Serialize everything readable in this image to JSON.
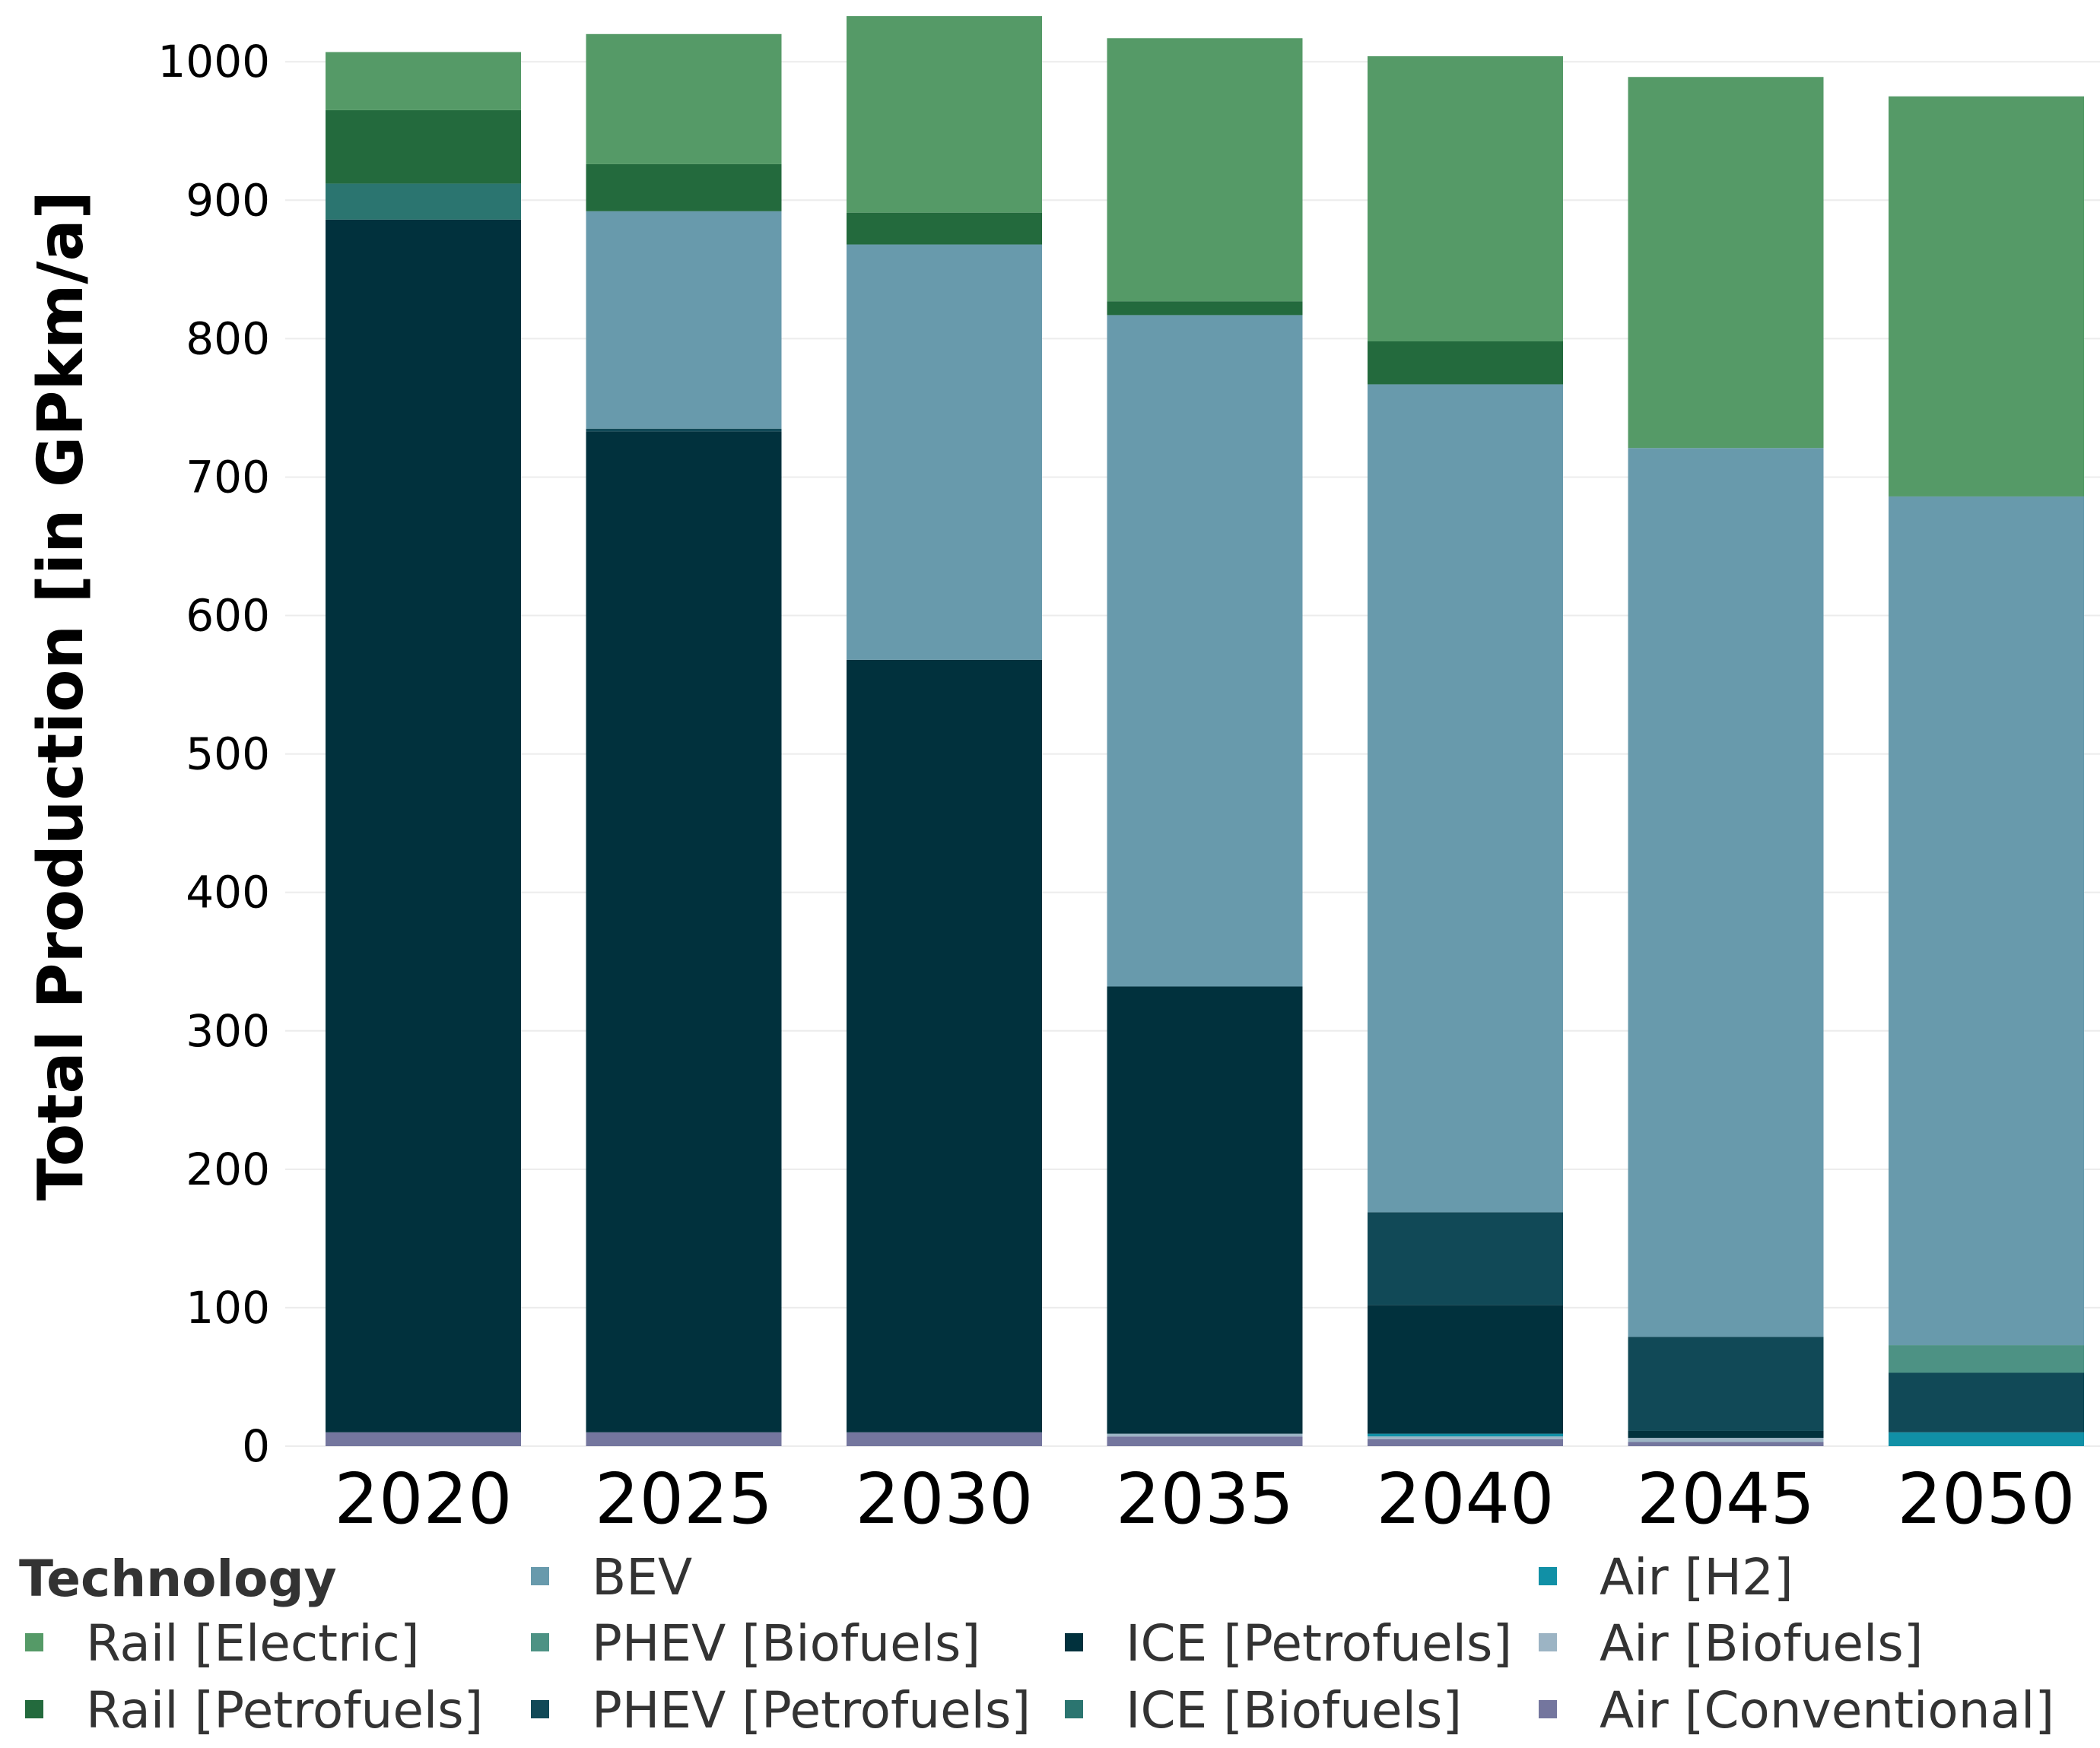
{
  "chart_data": {
    "type": "bar",
    "stacked": true,
    "title": "",
    "xlabel": "",
    "ylabel": "Total Production [in GPkm/a]",
    "ylim": [
      -20,
      1035
    ],
    "y_ticks": [
      0,
      100,
      200,
      300,
      400,
      500,
      600,
      700,
      800,
      900,
      1000
    ],
    "y_tick_labels": [
      "0",
      "100",
      "200",
      "300",
      "400",
      "500",
      "600",
      "700",
      "800",
      "900",
      "1000"
    ],
    "categories": [
      "2020",
      "2025",
      "2030",
      "2035",
      "2040",
      "2045",
      "2050"
    ],
    "legend_title": "Technology",
    "legend_placement": "bottom",
    "series": [
      {
        "name": "Air [Conventional]",
        "color": "#74769e",
        "values": [
          10,
          10,
          10,
          7,
          5,
          3,
          0
        ]
      },
      {
        "name": "Air [Biofuels]",
        "color": "#9cb4c4",
        "values": [
          0,
          0,
          0,
          2,
          2,
          3,
          0
        ]
      },
      {
        "name": "Air [H2]",
        "color": "#1190a6",
        "values": [
          0,
          0,
          0,
          0,
          2,
          0,
          10
        ]
      },
      {
        "name": "ICE [Petrofuels]",
        "color": "#01313d",
        "values": [
          876,
          723,
          558,
          323,
          93,
          5,
          0
        ]
      },
      {
        "name": "ICE [Biofuels]",
        "color": "#2b7570",
        "values": [
          26,
          0,
          0,
          0,
          0,
          0,
          0
        ]
      },
      {
        "name": "PHEV [Petrofuels]",
        "color": "#114957",
        "values": [
          0,
          2,
          0,
          0,
          67,
          68,
          43
        ]
      },
      {
        "name": "PHEV [Biofuels]",
        "color": "#4d9284",
        "values": [
          0,
          0,
          0,
          0,
          0,
          0,
          20
        ]
      },
      {
        "name": "BEV",
        "color": "#689aac",
        "values": [
          0,
          157,
          300,
          485,
          598,
          642,
          613
        ]
      },
      {
        "name": "Rail [Petrofuels]",
        "color": "#236a3d",
        "values": [
          53,
          34,
          23,
          10,
          31,
          0,
          0
        ]
      },
      {
        "name": "Rail [Electric]",
        "color": "#559a67",
        "values": [
          42,
          94,
          142,
          190,
          206,
          268,
          289
        ]
      }
    ],
    "legend_layout": [
      {
        "name": "Rail [Electric]",
        "col": 0,
        "row": 1
      },
      {
        "name": "Rail [Petrofuels]",
        "col": 0,
        "row": 2
      },
      {
        "name": "BEV",
        "col": 1,
        "row": 0
      },
      {
        "name": "PHEV [Biofuels]",
        "col": 1,
        "row": 1
      },
      {
        "name": "PHEV [Petrofuels]",
        "col": 1,
        "row": 2
      },
      {
        "name": "ICE [Petrofuels]",
        "col": 2,
        "row": 1
      },
      {
        "name": "ICE [Biofuels]",
        "col": 2,
        "row": 2
      },
      {
        "name": "Air [H2]",
        "col": 3,
        "row": 0
      },
      {
        "name": "Air [Biofuels]",
        "col": 3,
        "row": 1
      },
      {
        "name": "Air [Conventional]",
        "col": 3,
        "row": 2
      }
    ]
  }
}
